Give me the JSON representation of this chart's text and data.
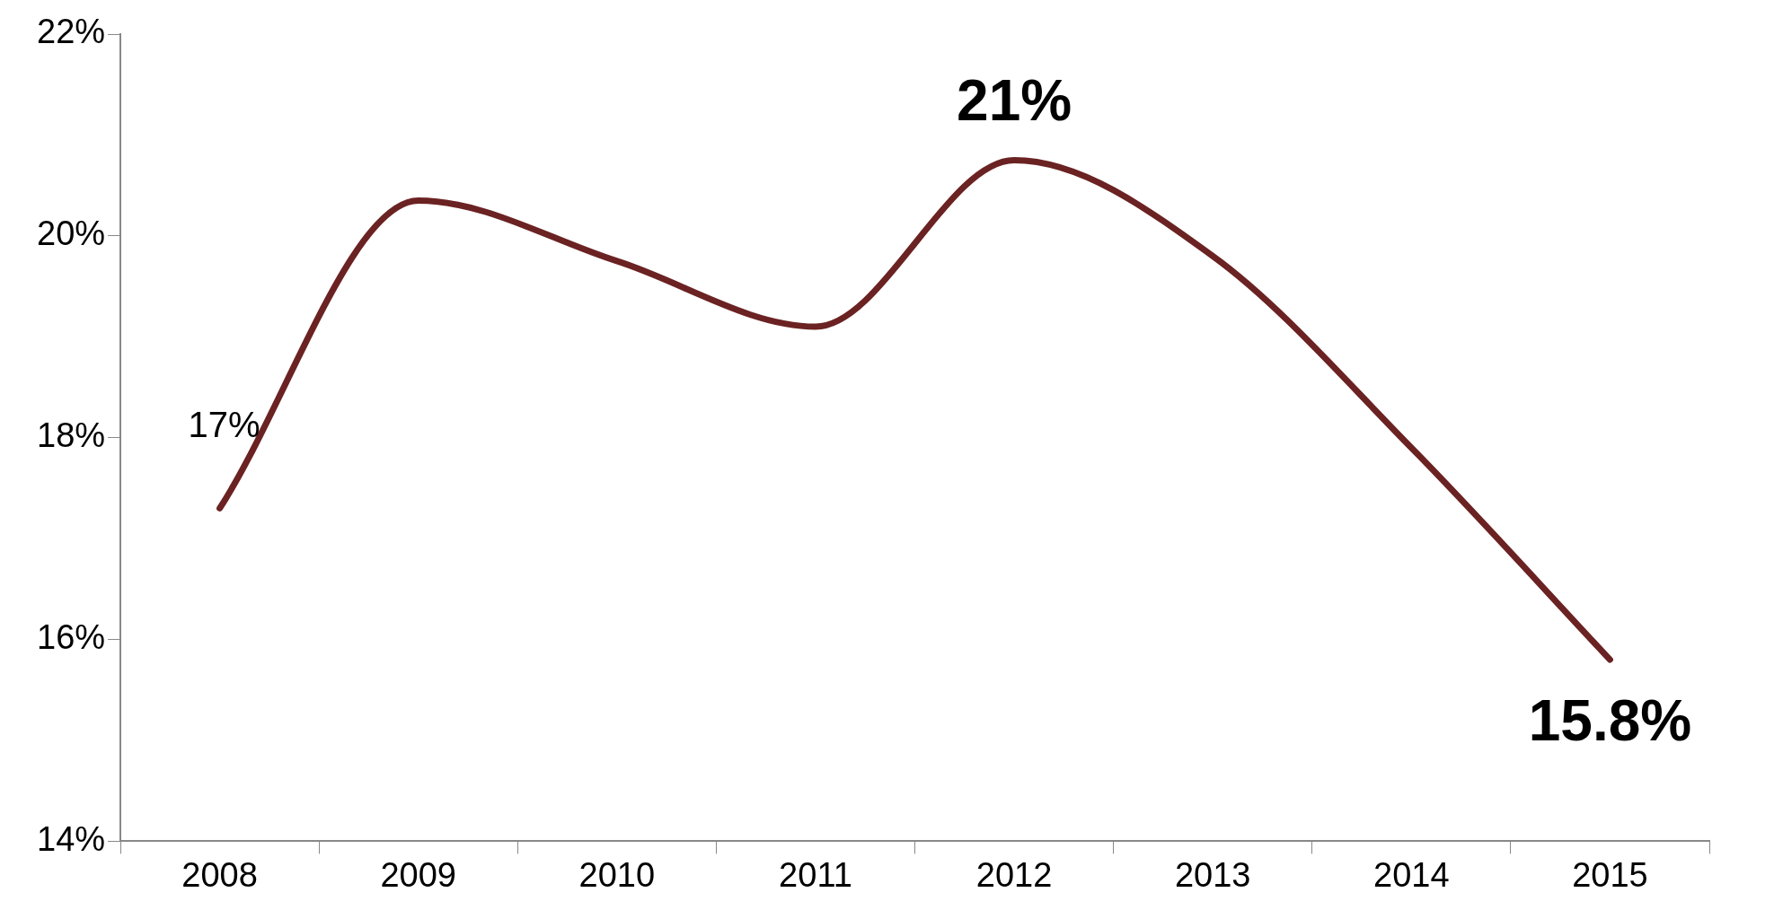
{
  "chart_data": {
    "type": "line",
    "categories": [
      "2008",
      "2009",
      "2010",
      "2011",
      "2012",
      "2013",
      "2014",
      "2015"
    ],
    "series": [
      {
        "color": "#6b2222",
        "values": [
          17.3,
          20.35,
          19.75,
          19.1,
          20.75,
          19.8,
          17.9,
          15.8
        ],
        "value_labels": [
          "17%",
          null,
          null,
          null,
          "21%",
          null,
          null,
          "15.8%"
        ]
      }
    ],
    "ylim": [
      14,
      22
    ],
    "yticks": [
      {
        "value": 14,
        "label": "14%"
      },
      {
        "value": 16,
        "label": "16%"
      },
      {
        "value": 18,
        "label": "18%"
      },
      {
        "value": 20,
        "label": "20%"
      },
      {
        "value": 22,
        "label": "22%"
      }
    ],
    "grid": false,
    "legend": false,
    "marker": "none",
    "line_style": "solid"
  }
}
